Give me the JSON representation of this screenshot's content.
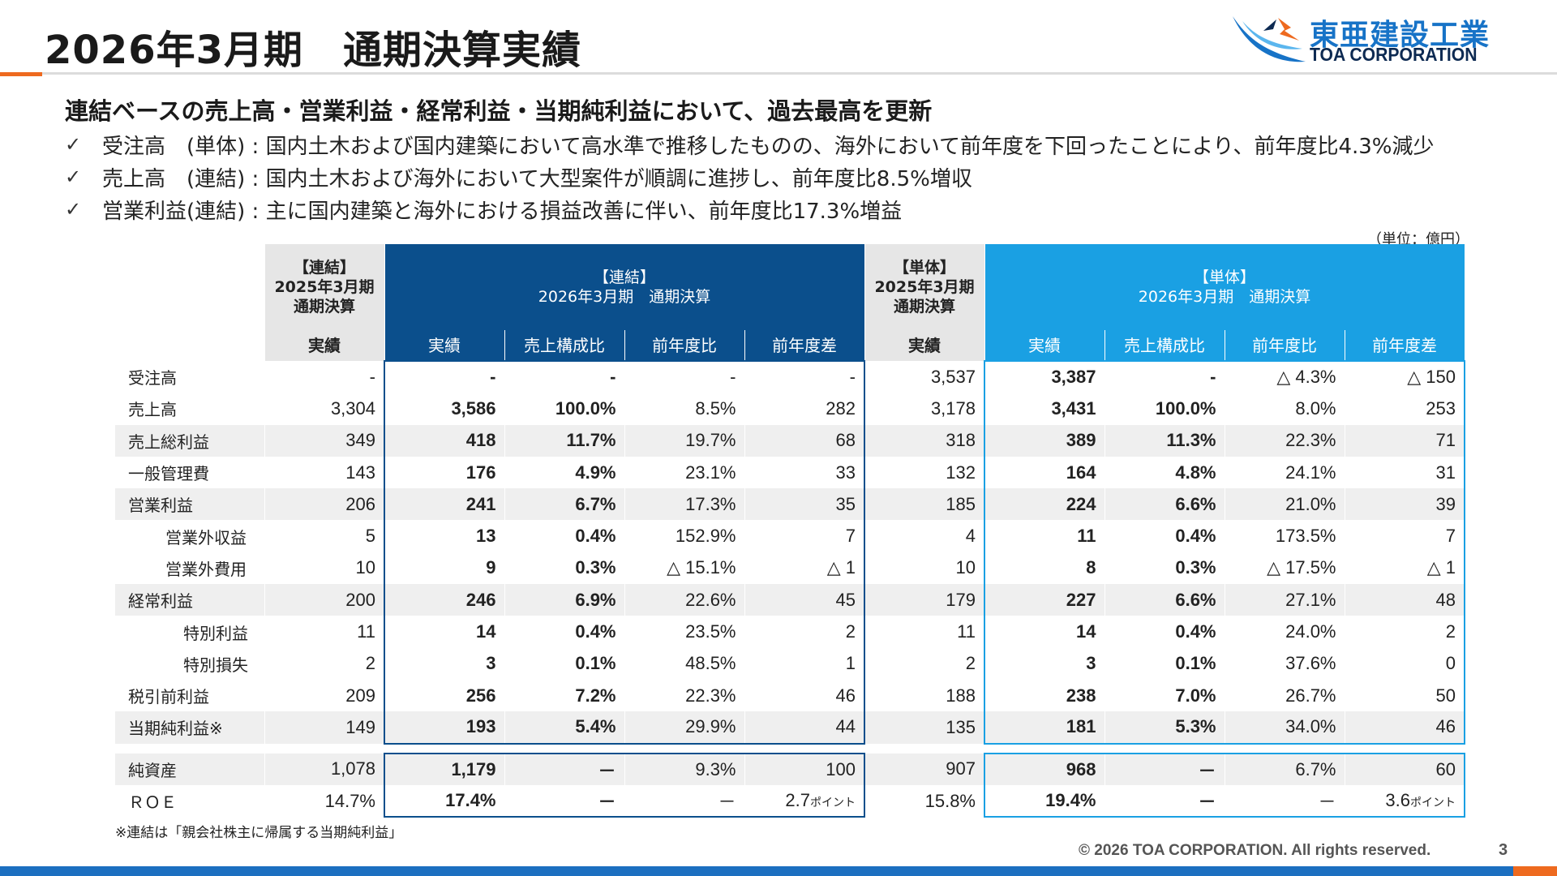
{
  "title": "2026年3月期　通期決算実績",
  "logo": {
    "jp": "東亜建設工業",
    "en": "TOA CORPORATION"
  },
  "headline": "連結ベースの売上高・営業利益・経常利益・当期純利益において、過去最高を更新",
  "bullets": [
    {
      "check": "✓",
      "text": "受注高　(単体) : 国内土木および国内建築において高水準で推移したものの、海外において前年度を下回ったことにより、前年度比4.3%減少"
    },
    {
      "check": "✓",
      "text": "売上高　(連結) : 国内土木および海外において大型案件が順調に進捗し、前年度比8.5%増収"
    },
    {
      "check": "✓",
      "text": "営業利益(連結) : 主に国内建築と海外における損益改善に伴い、前年度比17.3%増益"
    }
  ],
  "unit": "（単位：億円）",
  "table": {
    "headers": {
      "cons_prev": "【連結】\n2025年3月期\n通期決算",
      "cons_curr": "【連結】\n2026年3月期　通期決算",
      "solo_prev": "【単体】\n2025年3月期\n通期決算",
      "solo_curr": "【単体】\n2026年3月期　通期決算"
    },
    "subheaders": [
      "実績",
      "実績",
      "売上構成比",
      "前年度比",
      "前年度差",
      "実績",
      "実績",
      "売上構成比",
      "前年度比",
      "前年度差"
    ],
    "rows": [
      {
        "label": "受注高",
        "indent": 0,
        "values": [
          "-",
          "-",
          "-",
          "-",
          "-",
          "3,537",
          "3,387",
          "-",
          "△ 4.3%",
          "△ 150"
        ]
      },
      {
        "label": "売上高",
        "indent": 0,
        "values": [
          "3,304",
          "3,586",
          "100.0%",
          "8.5%",
          "282",
          "3,178",
          "3,431",
          "100.0%",
          "8.0%",
          "253"
        ]
      },
      {
        "label": "売上総利益",
        "indent": 0,
        "values": [
          "349",
          "418",
          "11.7%",
          "19.7%",
          "68",
          "318",
          "389",
          "11.3%",
          "22.3%",
          "71"
        ]
      },
      {
        "label": "一般管理費",
        "indent": 0,
        "values": [
          "143",
          "176",
          "4.9%",
          "23.1%",
          "33",
          "132",
          "164",
          "4.8%",
          "24.1%",
          "31"
        ]
      },
      {
        "label": "営業利益",
        "indent": 0,
        "values": [
          "206",
          "241",
          "6.7%",
          "17.3%",
          "35",
          "185",
          "224",
          "6.6%",
          "21.0%",
          "39"
        ]
      },
      {
        "label": "営業外収益",
        "indent": 1,
        "values": [
          "5",
          "13",
          "0.4%",
          "152.9%",
          "7",
          "4",
          "11",
          "0.4%",
          "173.5%",
          "7"
        ]
      },
      {
        "label": "営業外費用",
        "indent": 1,
        "values": [
          "10",
          "9",
          "0.3%",
          "△ 15.1%",
          "△ 1",
          "10",
          "8",
          "0.3%",
          "△ 17.5%",
          "△ 1"
        ]
      },
      {
        "label": "経常利益",
        "indent": 0,
        "values": [
          "200",
          "246",
          "6.9%",
          "22.6%",
          "45",
          "179",
          "227",
          "6.6%",
          "27.1%",
          "48"
        ]
      },
      {
        "label": "特別利益",
        "indent": 2,
        "values": [
          "11",
          "14",
          "0.4%",
          "23.5%",
          "2",
          "11",
          "14",
          "0.4%",
          "24.0%",
          "2"
        ]
      },
      {
        "label": "特別損失",
        "indent": 2,
        "values": [
          "2",
          "3",
          "0.1%",
          "48.5%",
          "1",
          "2",
          "3",
          "0.1%",
          "37.6%",
          "0"
        ]
      },
      {
        "label": "税引前利益",
        "indent": 0,
        "values": [
          "209",
          "256",
          "7.2%",
          "22.3%",
          "46",
          "188",
          "238",
          "7.0%",
          "26.7%",
          "50"
        ]
      },
      {
        "label": "当期純利益※",
        "indent": 0,
        "values": [
          "149",
          "193",
          "5.4%",
          "29.9%",
          "44",
          "135",
          "181",
          "5.3%",
          "34.0%",
          "46"
        ]
      }
    ],
    "extra_rows": [
      {
        "label": "純資産",
        "values": [
          "1,078",
          "1,179",
          "－",
          "9.3%",
          "100",
          "907",
          "968",
          "－",
          "6.7%",
          "60"
        ]
      },
      {
        "label": "ＲＯＥ",
        "values": [
          "14.7%",
          "17.4%",
          "－",
          "－",
          "2.7",
          "15.8%",
          "19.4%",
          "－",
          "－",
          "3.6"
        ],
        "diff_unit": "ポイント"
      }
    ]
  },
  "footnote": "※連結は「親会社株主に帰属する当期純利益」",
  "copyright": "© 2026 TOA CORPORATION.  All rights reserved.",
  "page_number": "3",
  "colors": {
    "navy": "#0b4f8c",
    "sky": "#1aa0e3",
    "orange": "#ee6a1f",
    "bar": "#1c6fc0"
  }
}
